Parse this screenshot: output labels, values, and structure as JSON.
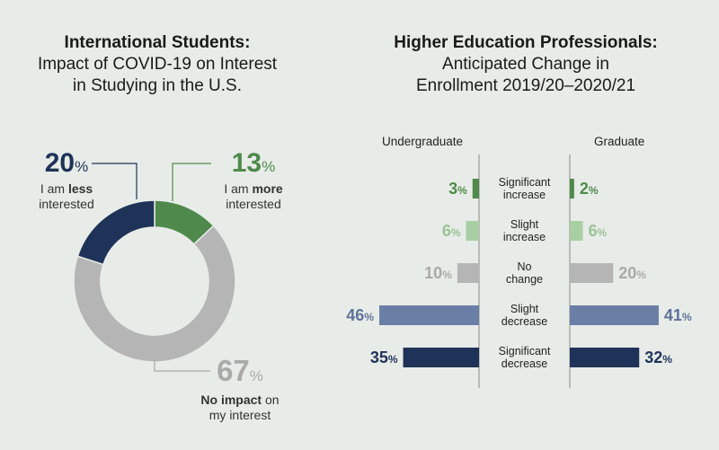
{
  "left_chart": {
    "title_lines": [
      "International Students:",
      "Impact of COVID-19 on Interest",
      "in Studying in the U.S."
    ],
    "chart_data": {
      "type": "pie",
      "slices": [
        {
          "label_pre": "I am ",
          "label_bold": "more",
          "label_post": "",
          "label_line2": "interested",
          "value": 13,
          "color": "#4f8a4c"
        },
        {
          "label_pre": "",
          "label_bold": "No impact",
          "label_post": " on",
          "label_line2": "my interest",
          "value": 67,
          "color": "#b5b5b5"
        },
        {
          "label_pre": "I am ",
          "label_bold": "less",
          "label_post": "",
          "label_line2": "interested",
          "value": 20,
          "color": "#1f3358"
        }
      ],
      "value_suffix": "%"
    }
  },
  "right_chart": {
    "title_lines": [
      "Higher Education Professionals:",
      "Anticipated Change in",
      "Enrollment 2019/20–2020/21"
    ],
    "chart_data": {
      "type": "bar",
      "orientation": "horizontal-butterfly",
      "categories": [
        [
          "Significant",
          "increase"
        ],
        [
          "Slight",
          "increase"
        ],
        [
          "No",
          "change"
        ],
        [
          "Slight",
          "decrease"
        ],
        [
          "Significant",
          "decrease"
        ]
      ],
      "series": [
        {
          "name": "Undergraduate",
          "values": [
            3,
            6,
            10,
            46,
            35
          ]
        },
        {
          "name": "Graduate",
          "values": [
            2,
            6,
            20,
            41,
            32
          ]
        }
      ],
      "colors": [
        "#4f8a4c",
        "#a8cfa3",
        "#b5b5b5",
        "#6b7fa6",
        "#1f3358"
      ],
      "value_suffix": "%"
    }
  }
}
